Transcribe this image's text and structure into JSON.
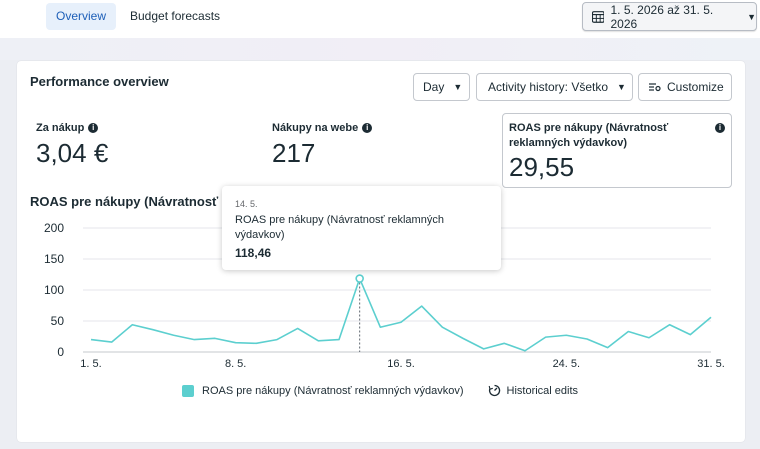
{
  "tabs": [
    {
      "label": "Overview",
      "active": true
    },
    {
      "label": "Budget forecasts",
      "active": false
    }
  ],
  "date_range": {
    "label": "1. 5. 2026 až 31. 5. 2026",
    "icon": "calendar-icon"
  },
  "card": {
    "title": "Performance overview",
    "controls": {
      "day": "Day",
      "activity": "Activity history: Všetko",
      "customize": "Customize"
    },
    "metrics": [
      {
        "label": "Za nákup",
        "value": "3,04 €"
      },
      {
        "label": "Nákupy na webe",
        "value": "217"
      },
      {
        "label": "ROAS pre nákupy (Návratnosť reklamných výdavkov)",
        "value": "29,55",
        "selected": true
      }
    ],
    "chart_title": "ROAS pre nákupy (Návratnosť reklamných výdavkov)",
    "tooltip": {
      "date": "14. 5.",
      "metric": "ROAS pre nákupy (Návratnosť reklamných výdavkov)",
      "value": "118,46"
    },
    "legend": {
      "series": "ROAS pre nákupy (Návratnosť reklamných výdavkov)",
      "edits": "Historical edits"
    }
  },
  "colors": {
    "series": "#5ccfcf",
    "accent": "#1d5fb8"
  },
  "chart_data": {
    "type": "line",
    "title": "ROAS pre nákupy (Návratnosť reklamných výdavkov)",
    "x_tick_labels": [
      "1. 5.",
      "8. 5.",
      "16. 5.",
      "24. 5.",
      "31. 5."
    ],
    "x_tick_days": [
      1,
      8,
      16,
      24,
      31
    ],
    "y_ticks": [
      0,
      50,
      100,
      150,
      200
    ],
    "ylim": [
      0,
      200
    ],
    "grid": true,
    "legend_position": "bottom",
    "highlight_day": 14,
    "series": [
      {
        "name": "ROAS pre nákupy (Návratnosť reklamných výdavkov)",
        "x": [
          1,
          2,
          3,
          4,
          5,
          6,
          7,
          8,
          9,
          10,
          11,
          12,
          13,
          14,
          15,
          16,
          17,
          18,
          19,
          20,
          21,
          22,
          23,
          24,
          25,
          26,
          27,
          28,
          29,
          30,
          31
        ],
        "values": [
          20,
          16,
          44,
          36,
          27,
          20,
          22,
          15,
          14,
          20,
          38,
          18,
          20,
          118.46,
          40,
          48,
          74,
          40,
          22,
          5,
          14,
          2,
          24,
          27,
          21,
          7,
          33,
          23,
          44,
          28,
          56
        ]
      }
    ]
  }
}
